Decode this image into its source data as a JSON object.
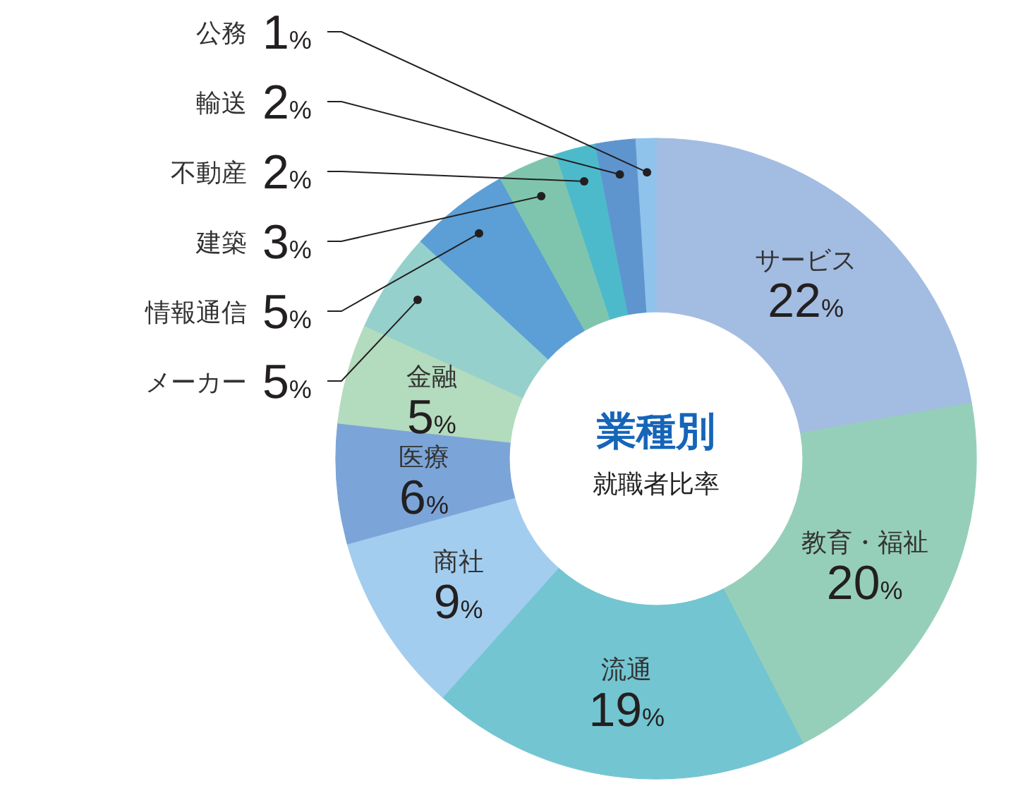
{
  "chart_data": {
    "type": "donut",
    "title": "業種別",
    "subtitle": "就職者比率",
    "categories": [
      "サービス",
      "教育・福祉",
      "流通",
      "商社",
      "医療",
      "金融",
      "メーカー",
      "情報通信",
      "建築",
      "不動産",
      "輸送",
      "公務"
    ],
    "values": [
      22,
      20,
      19,
      9,
      6,
      5,
      5,
      5,
      3,
      2,
      2,
      1
    ],
    "colors": [
      "#a3bce1",
      "#96cfb9",
      "#73c5d1",
      "#a3cdee",
      "#7ba5d8",
      "#b3dbbd",
      "#95d0cc",
      "#5b9fd6",
      "#7fc5ae",
      "#4dbacb",
      "#5e95cf",
      "#8fc3ec"
    ],
    "value_labels": [
      "22%",
      "20%",
      "19%",
      "9%",
      "6%",
      "5%",
      "5%",
      "5%",
      "3%",
      "2%",
      "2%",
      "1%"
    ]
  }
}
